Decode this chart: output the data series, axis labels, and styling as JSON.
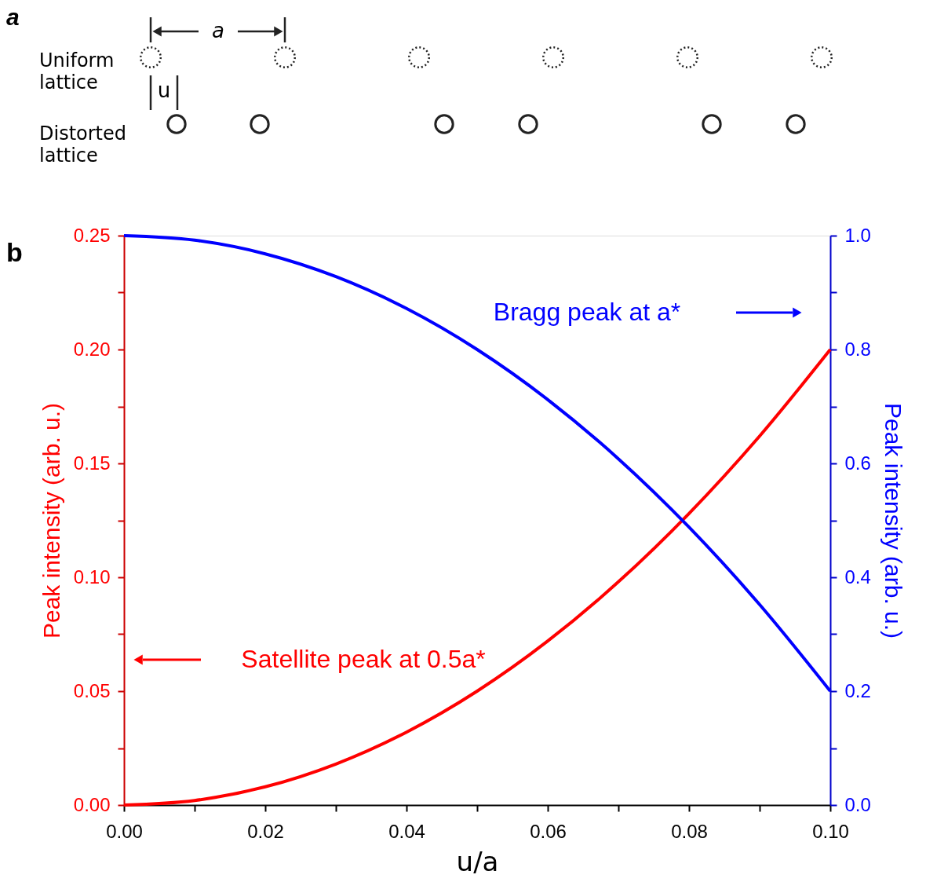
{
  "chart_data": {
    "type": "line",
    "title": "b",
    "xlabel": "u/a",
    "ylabel": "Peak intensity (arb. u.)",
    "y2label": "Peak intensity (arb. u.)",
    "x": [
      0,
      0.01,
      0.02,
      0.03,
      0.04,
      0.05,
      0.06,
      0.07,
      0.08,
      0.09,
      0.1
    ],
    "series": [
      {
        "color": "#ff0000",
        "values": [
          0,
          0.002,
          0.008,
          0.018,
          0.032,
          0.05,
          0.072,
          0.098,
          0.128,
          0.162,
          0.2
        ]
      },
      {
        "color": "#0000ff",
        "axis": "y2",
        "values": [
          1,
          0.992,
          0.968,
          0.928,
          0.872,
          0.8,
          0.712,
          0.608,
          0.488,
          0.352,
          0.2
        ]
      }
    ],
    "xlim": [
      0,
      0.1
    ],
    "xticks": [
      {
        "value": 0,
        "label": "0.00"
      },
      {
        "value": 0.01,
        "label": null
      },
      0.02,
      {
        "value": 0.03,
        "label": null
      },
      0.04,
      {
        "value": 0.05,
        "label": null
      },
      0.06,
      {
        "value": 0.07,
        "label": null
      },
      0.08,
      {
        "value": 0.09,
        "label": null
      },
      {
        "value": 0.1,
        "label": "0.10"
      }
    ],
    "ylim": [
      0,
      0.25
    ],
    "yticks": [
      {
        "value": 0,
        "label": "0.00"
      },
      {
        "value": 0.025,
        "label": null
      },
      0.05,
      {
        "value": 0.075,
        "label": null
      },
      {
        "value": 0.1,
        "label": "0.10"
      },
      {
        "value": 0.125,
        "label": null
      },
      0.15,
      {
        "value": 0.175,
        "label": null
      },
      {
        "value": 0.2,
        "label": "0.20"
      },
      {
        "value": 0.225,
        "label": null
      },
      0.25
    ],
    "y2lim": [
      0,
      1
    ],
    "y2ticks": [
      {
        "value": 0,
        "label": "0.0"
      },
      {
        "value": 0.1,
        "label": null
      },
      0.2,
      {
        "value": 0.3,
        "label": null
      },
      0.4,
      {
        "value": 0.5,
        "label": null
      },
      0.6,
      {
        "value": 0.7,
        "label": null
      },
      0.8,
      {
        "value": 0.9,
        "label": null
      },
      {
        "value": 1,
        "label": "1.0"
      }
    ],
    "annotations": [
      "a",
      "Uniform lattice",
      "Distorted lattice",
      "a",
      "u",
      "Bragg peak at a*",
      "Satellite peak at 0.5a*"
    ],
    "grid": false,
    "line_style": "solid",
    "marker": "none"
  }
}
